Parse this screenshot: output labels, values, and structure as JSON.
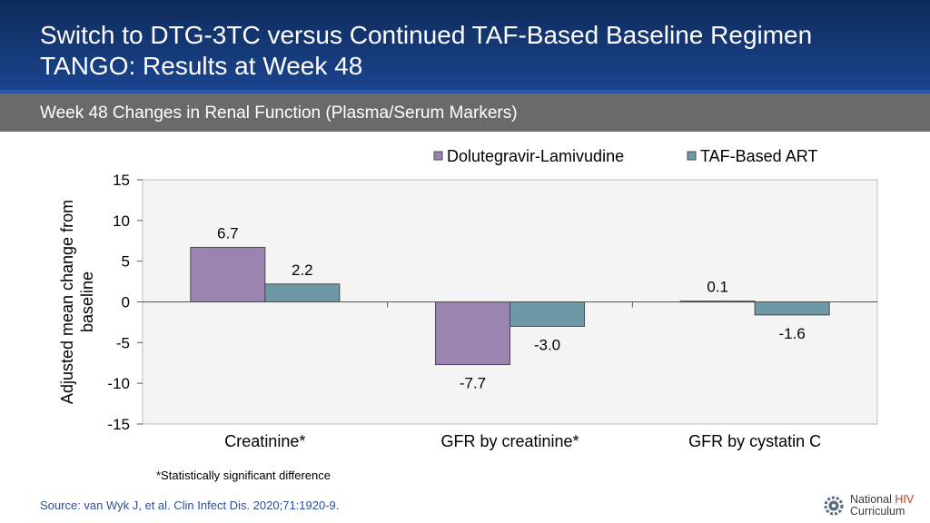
{
  "header": {
    "title_line1": "Switch to DTG-3TC versus Continued TAF-Based Baseline Regimen",
    "title_line2": "TANGO: Results at Week 48"
  },
  "subheader": "Week 48 Changes in Renal Function (Plasma/Serum Markers)",
  "chart_data": {
    "type": "bar",
    "ylabel_line1": "Adjusted mean change from",
    "ylabel_line2": "baseline",
    "xlabel": "",
    "categories": [
      "Creatinine*",
      "GFR by creatinine*",
      "GFR by cystatin C"
    ],
    "series": [
      {
        "name": "Dolutegravir-Lamivudine",
        "values": [
          6.7,
          -7.7,
          0.1
        ],
        "color": "#9b85b0",
        "labels": [
          "6.7",
          "-7.7",
          "0.1"
        ]
      },
      {
        "name": "TAF-Based ART",
        "values": [
          2.2,
          -3.0,
          -1.6
        ],
        "color": "#6f98a6",
        "labels": [
          "2.2",
          "-3.0",
          "-1.6"
        ]
      }
    ],
    "ylim": [
      -15,
      15
    ],
    "yticks": [
      15,
      10,
      5,
      0,
      -5,
      -10,
      -15
    ],
    "grid": false,
    "legend": "top-right"
  },
  "footnote": "*Statistically significant difference",
  "source": "Source: van Wyk J, et al. Clin Infect Dis. 2020;71:1920-9.",
  "logo": {
    "line1a": "National ",
    "line1b": "HIV",
    "line2": "Curriculum",
    "accent_color": "#c0392b"
  }
}
